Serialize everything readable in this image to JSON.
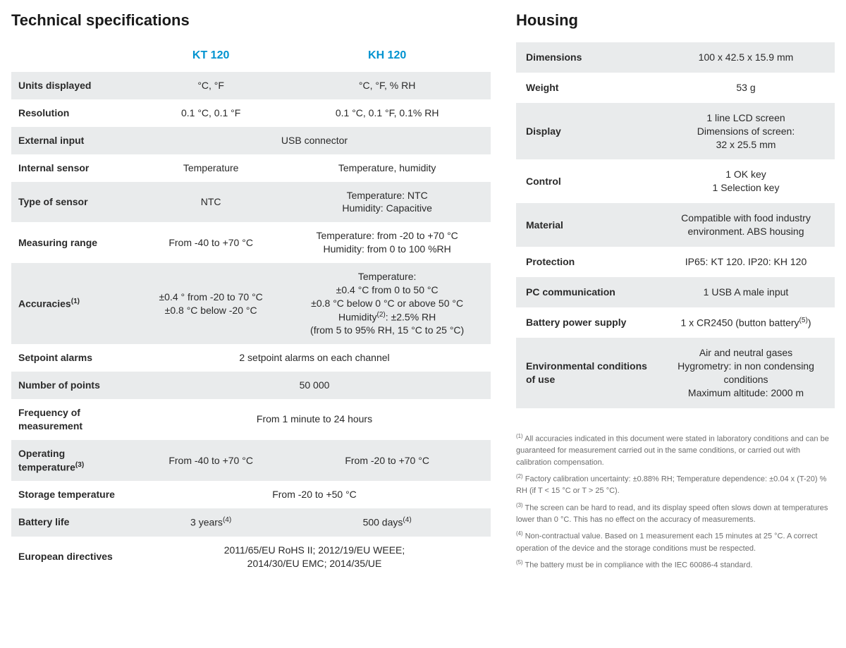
{
  "colors": {
    "accent": "#0093d0",
    "row_alt": "#e9ebec",
    "text": "#2a2a2a",
    "footnote_text": "#6c6c6c",
    "background": "#ffffff"
  },
  "sections": {
    "specs_title": "Technical specifications",
    "housing_title": "Housing"
  },
  "columns": {
    "col1": "KT 120",
    "col2": "KH 120"
  },
  "specs_cols": [
    "label_html",
    "col1",
    "col2",
    "span"
  ],
  "specs": [
    {
      "label_html": "Units displayed",
      "col1": "°C, °F",
      "col2": "°C, °F, % RH"
    },
    {
      "label_html": "Resolution",
      "col1": "0.1 °C, 0.1 °F",
      "col2": "0.1 °C, 0.1 °F, 0.1% RH"
    },
    {
      "label_html": "External input",
      "span": "USB connector"
    },
    {
      "label_html": "Internal sensor",
      "col1": "Temperature",
      "col2": "Temperature, humidity"
    },
    {
      "label_html": "Type of sensor",
      "col1": "NTC",
      "col2": "Temperature: NTC\nHumidity: Capacitive"
    },
    {
      "label_html": "Measuring range",
      "col1": "From -40 to +70 °C",
      "col2": "Temperature: from -20 to +70 °C\nHumidity: from 0 to 100 %RH"
    },
    {
      "label_html": "Accuracies<span class='sup'>(1)</span>",
      "col1": "±0.4 ° from -20 to 70 °C\n±0.8 °C below -20 °C",
      "col2": "Temperature:\n±0.4 °C from 0 to 50 °C\n±0.8 °C below 0 °C or above 50 °C\nHumidity<span class='sup'>(2)</span>: ±2.5% RH\n(from 5 to 95% RH, 15 °C to 25 °C)"
    },
    {
      "label_html": "Setpoint alarms",
      "span": "2 setpoint alarms on each channel"
    },
    {
      "label_html": "Number of points",
      "span": "50 000"
    },
    {
      "label_html": "Frequency of measurement",
      "span": "From 1 minute to 24 hours"
    },
    {
      "label_html": "Operating temperature<span class='sup'>(3)</span>",
      "col1": "From -40 to +70 °C",
      "col2": "From -20 to +70 °C"
    },
    {
      "label_html": "Storage temperature",
      "span": "From -20 to +50 °C"
    },
    {
      "label_html": "Battery life",
      "col1": "3 years<span class='sup'>(4)</span>",
      "col2": "500 days<span class='sup'>(4)</span>"
    },
    {
      "label_html": "European directives",
      "span": "2011/65/EU RoHS II; 2012/19/EU WEEE;\n2014/30/EU EMC; 2014/35/UE"
    }
  ],
  "housing_cols": [
    "label_html",
    "value"
  ],
  "housing": [
    {
      "label_html": "Dimensions",
      "value": "100 x 42.5 x 15.9 mm"
    },
    {
      "label_html": "Weight",
      "value": "53 g"
    },
    {
      "label_html": "Display",
      "value": "1 line LCD screen\nDimensions of screen:\n32 x 25.5 mm"
    },
    {
      "label_html": "Control",
      "value": "1 OK key\n1 Selection key"
    },
    {
      "label_html": "Material",
      "value": "Compatible with food industry environment. ABS housing"
    },
    {
      "label_html": "Protection",
      "value": "IP65: KT 120. IP20: KH 120"
    },
    {
      "label_html": "PC communication",
      "value": "1 USB A male input"
    },
    {
      "label_html": "Battery power supply",
      "value": "1 x CR2450 (button battery<span class='sup'>(5)</span>)"
    },
    {
      "label_html": "Environmental conditions of use",
      "value": "Air and neutral gases\nHygrometry: in non condensing conditions\nMaximum altitude: 2000 m"
    }
  ],
  "footnotes": [
    "<span class='sup'>(1)</span> All accuracies indicated in this document were stated in laboratory conditions and can be guaranteed for measurement carried out in the same conditions, or carried out with calibration compensation.",
    "<span class='sup'>(2)</span> Factory calibration uncertainty: ±0.88% RH; Temperature dependence: ±0.04 x (T-20) % RH (if T < 15 °C or T > 25 °C).",
    "<span class='sup'>(3)</span> The screen can be hard to read, and its display speed often slows down at temperatures lower than 0 °C. This has no effect on the accuracy of measurements.",
    "<span class='sup'>(4)</span> Non-contractual value. Based on 1 measurement each 15 minutes at 25 °C. A correct operation of the device and the storage conditions must be respected.",
    "<span class='sup'>(5)</span> The battery must be in compliance with the IEC 60086-4 standard."
  ]
}
